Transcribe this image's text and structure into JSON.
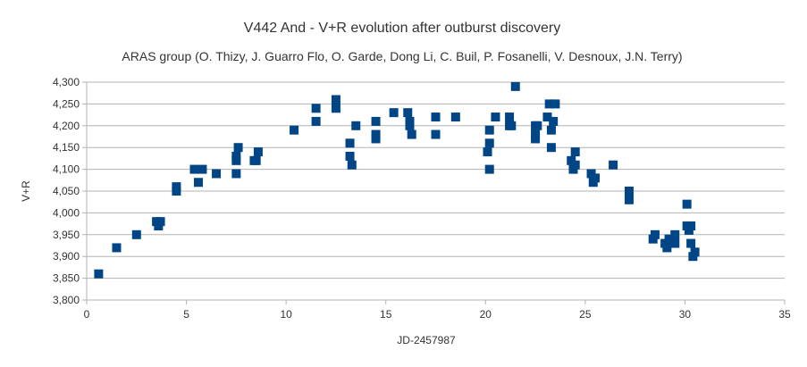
{
  "chart_data": {
    "type": "scatter",
    "title": "V442 And - V+R evolution after outburst discovery",
    "subtitle": "ARAS group (O. Thizy, J. Guarro Flo, O. Garde, Dong Li, C. Buil, P. Fosanelli, V. Desnoux, J.N. Terry)",
    "xlabel": "JD-2457987",
    "ylabel": "V+R",
    "xlim": [
      0,
      35
    ],
    "ylim": [
      3.8,
      4.3
    ],
    "xticks": [
      0,
      5,
      10,
      15,
      20,
      25,
      30,
      35
    ],
    "yticks": [
      "3,800",
      "3,850",
      "3,900",
      "3,950",
      "4,000",
      "4,050",
      "4,100",
      "4,150",
      "4,200",
      "4,250",
      "4,300"
    ],
    "grid": "horizontal",
    "marker": "square",
    "color": "#004586",
    "points": [
      [
        0.6,
        3.86
      ],
      [
        1.5,
        3.92
      ],
      [
        2.5,
        3.95
      ],
      [
        3.5,
        3.98
      ],
      [
        3.7,
        3.98
      ],
      [
        3.6,
        3.97
      ],
      [
        4.5,
        4.05
      ],
      [
        4.5,
        4.06
      ],
      [
        5.4,
        4.1
      ],
      [
        5.8,
        4.1
      ],
      [
        5.6,
        4.07
      ],
      [
        6.5,
        4.09
      ],
      [
        7.5,
        4.09
      ],
      [
        7.5,
        4.12
      ],
      [
        7.5,
        4.13
      ],
      [
        7.6,
        4.15
      ],
      [
        8.4,
        4.12
      ],
      [
        8.5,
        4.12
      ],
      [
        8.6,
        4.14
      ],
      [
        10.4,
        4.19
      ],
      [
        11.5,
        4.21
      ],
      [
        11.5,
        4.24
      ],
      [
        12.5,
        4.24
      ],
      [
        12.5,
        4.26
      ],
      [
        13.2,
        4.16
      ],
      [
        13.2,
        4.13
      ],
      [
        13.3,
        4.11
      ],
      [
        13.5,
        4.2
      ],
      [
        14.5,
        4.17
      ],
      [
        14.5,
        4.18
      ],
      [
        14.5,
        4.21
      ],
      [
        15.4,
        4.23
      ],
      [
        16.1,
        4.23
      ],
      [
        16.2,
        4.2
      ],
      [
        16.2,
        4.21
      ],
      [
        16.3,
        4.18
      ],
      [
        17.5,
        4.22
      ],
      [
        17.5,
        4.18
      ],
      [
        18.5,
        4.22
      ],
      [
        20.1,
        4.14
      ],
      [
        20.2,
        4.1
      ],
      [
        20.2,
        4.16
      ],
      [
        20.2,
        4.19
      ],
      [
        20.5,
        4.22
      ],
      [
        21.2,
        4.2
      ],
      [
        21.2,
        4.22
      ],
      [
        21.3,
        4.2
      ],
      [
        21.5,
        4.29
      ],
      [
        22.5,
        4.17
      ],
      [
        22.5,
        4.18
      ],
      [
        22.5,
        4.2
      ],
      [
        22.6,
        4.2
      ],
      [
        23.1,
        4.22
      ],
      [
        23.2,
        4.25
      ],
      [
        23.3,
        4.15
      ],
      [
        23.3,
        4.19
      ],
      [
        23.4,
        4.21
      ],
      [
        23.5,
        4.25
      ],
      [
        24.3,
        4.12
      ],
      [
        24.4,
        4.1
      ],
      [
        24.5,
        4.11
      ],
      [
        24.5,
        4.14
      ],
      [
        25.3,
        4.09
      ],
      [
        25.4,
        4.07
      ],
      [
        25.5,
        4.08
      ],
      [
        26.4,
        4.11
      ],
      [
        27.2,
        4.03
      ],
      [
        27.2,
        4.05
      ],
      [
        28.4,
        3.94
      ],
      [
        28.5,
        3.95
      ],
      [
        29.0,
        3.93
      ],
      [
        29.1,
        3.92
      ],
      [
        29.2,
        3.94
      ],
      [
        29.5,
        3.95
      ],
      [
        29.5,
        3.93
      ],
      [
        30.1,
        4.02
      ],
      [
        30.1,
        3.97
      ],
      [
        30.2,
        3.96
      ],
      [
        30.3,
        3.97
      ],
      [
        30.3,
        3.93
      ],
      [
        30.4,
        3.9
      ],
      [
        30.5,
        3.91
      ]
    ]
  }
}
